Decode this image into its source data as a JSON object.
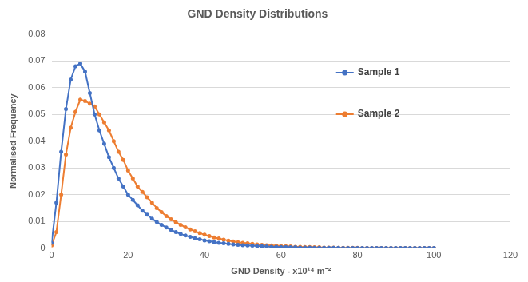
{
  "chart_data": {
    "type": "line",
    "title": "GND Density Distributions",
    "x_label": "GND Density - x10¹⁴ m⁻²",
    "y_label": "Normalised Frequency",
    "x": [
      0,
      1.25,
      2.5,
      3.75,
      5,
      6.25,
      7.5,
      8.75,
      10,
      11.25,
      12.5,
      13.75,
      15,
      16.25,
      17.5,
      18.75,
      20,
      21.25,
      22.5,
      23.75,
      25,
      26.25,
      27.5,
      28.75,
      30,
      31.25,
      32.5,
      33.75,
      35,
      36.25,
      37.5,
      38.75,
      40,
      41.25,
      42.5,
      43.75,
      45,
      46.25,
      47.5,
      48.75,
      50,
      51.25,
      52.5,
      53.75,
      55,
      56.25,
      57.5,
      58.75,
      60,
      61.25,
      62.5,
      63.75,
      65,
      66.25,
      67.5,
      68.75,
      70,
      71.25,
      72.5,
      73.75,
      75,
      76.25,
      77.5,
      78.75,
      80,
      81.25,
      82.5,
      83.75,
      85,
      86.25,
      87.5,
      88.75,
      90,
      91.25,
      92.5,
      93.75,
      95,
      96.25,
      97.5,
      98.75,
      100
    ],
    "series": [
      {
        "name": "Sample 1",
        "color": "#4472c4",
        "marker": "circle",
        "line_style": "solid",
        "values": [
          0.002,
          0.017,
          0.036,
          0.052,
          0.063,
          0.068,
          0.069,
          0.066,
          0.058,
          0.05,
          0.044,
          0.039,
          0.034,
          0.03,
          0.026,
          0.023,
          0.02,
          0.018,
          0.016,
          0.014,
          0.0125,
          0.011,
          0.0098,
          0.0087,
          0.0077,
          0.0068,
          0.006,
          0.0053,
          0.0047,
          0.0042,
          0.0037,
          0.0033,
          0.0029,
          0.0026,
          0.0023,
          0.002,
          0.0018,
          0.0016,
          0.0014,
          0.0012,
          0.0011,
          0.001,
          0.0009,
          0.0008,
          0.0007,
          0.0006,
          0.0005,
          0.0005,
          0.0004,
          0.0004,
          0.0003,
          0.0003,
          0.0002,
          0.0002,
          0.0002,
          0.0001,
          0.0001,
          0.0001,
          0.0001,
          0.0001,
          0.0001,
          0,
          0,
          0,
          0,
          0,
          0,
          0,
          0,
          0,
          0,
          0,
          0,
          0,
          0,
          0,
          0,
          0,
          0,
          0,
          0
        ]
      },
      {
        "name": "Sample 2",
        "color": "#ed7d31",
        "marker": "circle",
        "line_style": "solid",
        "values": [
          0.001,
          0.006,
          0.02,
          0.035,
          0.045,
          0.051,
          0.0555,
          0.055,
          0.054,
          0.053,
          0.05,
          0.047,
          0.044,
          0.04,
          0.036,
          0.033,
          0.029,
          0.026,
          0.023,
          0.021,
          0.019,
          0.017,
          0.015,
          0.0135,
          0.012,
          0.0108,
          0.0097,
          0.0087,
          0.0078,
          0.007,
          0.0063,
          0.0056,
          0.005,
          0.0045,
          0.004,
          0.0036,
          0.0032,
          0.0028,
          0.0025,
          0.0022,
          0.002,
          0.0018,
          0.0016,
          0.0014,
          0.0012,
          0.0011,
          0.001,
          0.0009,
          0.0008,
          0.0007,
          0.0006,
          0.0005,
          0.0005,
          0.0004,
          0.0004,
          0.0003,
          0.0003,
          0.0002,
          0.0002,
          0.0002,
          0.0001,
          0.0001,
          0.0001,
          0.0001,
          0.0001,
          0,
          0,
          0,
          0,
          0,
          0,
          0,
          0,
          0,
          0,
          0,
          0,
          0,
          0,
          0,
          0
        ]
      }
    ],
    "xlim": [
      0,
      120
    ],
    "xticks": [
      0,
      20,
      40,
      60,
      80,
      100,
      120
    ],
    "ylim": [
      0,
      0.08
    ],
    "yticks": [
      0,
      0.01,
      0.02,
      0.03,
      0.04,
      0.05,
      0.06,
      0.07,
      0.08
    ],
    "grid": "y",
    "legend": "right"
  }
}
